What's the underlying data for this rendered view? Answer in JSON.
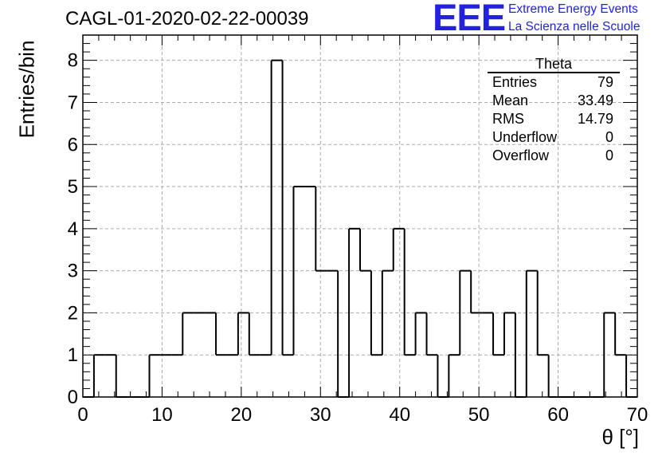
{
  "header": {
    "run_title": "CAGL-01-2020-02-22-00039",
    "logo_text": "EEE",
    "logo_line1": "Extreme Energy Events",
    "logo_line2": "La Scienza nelle Scuole",
    "logo_color": "#2222dd"
  },
  "stats_box": {
    "title": "Theta",
    "rows": [
      {
        "label": "Entries",
        "value": "79"
      },
      {
        "label": "Mean",
        "value": "33.49"
      },
      {
        "label": "RMS",
        "value": "14.79"
      },
      {
        "label": "Underflow",
        "value": "0"
      },
      {
        "label": "Overflow",
        "value": "0"
      }
    ]
  },
  "chart_data": {
    "type": "bar",
    "style": "step-histogram",
    "title": "CAGL-01-2020-02-22-00039",
    "xlabel": "θ [°]",
    "ylabel": "Entries/bin",
    "xlim": [
      0,
      70
    ],
    "ylim": [
      0,
      8.6
    ],
    "bin_width": 1.4,
    "bin_start": 0,
    "values": [
      0,
      1,
      1,
      0,
      0,
      0,
      1,
      1,
      1,
      2,
      2,
      2,
      1,
      1,
      2,
      1,
      1,
      8,
      1,
      5,
      5,
      3,
      3,
      0,
      4,
      3,
      1,
      3,
      4,
      1,
      2,
      1,
      0,
      1,
      3,
      2,
      2,
      1,
      2,
      0,
      3,
      1,
      0,
      0,
      0,
      0,
      0,
      2,
      1,
      0
    ],
    "xticks": [
      "0",
      "10",
      "20",
      "30",
      "40",
      "50",
      "60",
      "70"
    ],
    "yticks": [
      "0",
      "1",
      "2",
      "3",
      "4",
      "5",
      "6",
      "7",
      "8"
    ],
    "grid": true,
    "legend": "top-right"
  }
}
